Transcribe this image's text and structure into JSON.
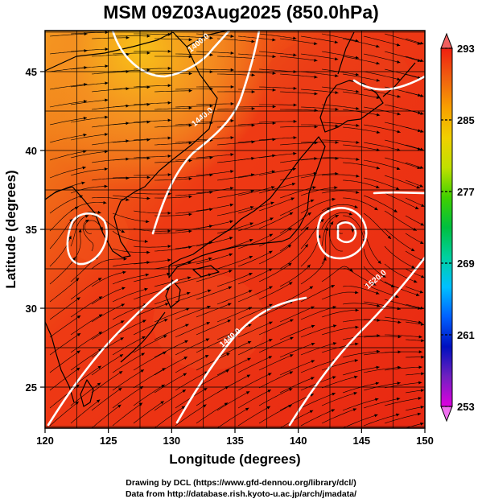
{
  "title": "MSM 09Z03Aug2025 (850.0hPa)",
  "x_axis": {
    "label": "Longitude (degrees)",
    "min": 120,
    "max": 150,
    "ticks": [
      120,
      125,
      130,
      135,
      140,
      145,
      150
    ]
  },
  "y_axis": {
    "label": "Latitude  (degrees)",
    "min": 22.4,
    "max": 47.6,
    "ticks": [
      25,
      30,
      35,
      40,
      45
    ]
  },
  "colorbar": {
    "min": 253,
    "max": 293,
    "ticks": [
      253,
      261,
      269,
      277,
      285,
      293
    ],
    "colors": [
      "#e000e0",
      "#7020c0",
      "#0010c0",
      "#0060ff",
      "#00c0ff",
      "#00d0a0",
      "#00c040",
      "#40d000",
      "#c0e000",
      "#f0d000",
      "#f8a000",
      "#f06010",
      "#f02010"
    ]
  },
  "map": {
    "grid_spacing_deg": 2.5,
    "contours": [
      {
        "label": "1400.0",
        "label_lon": 131.5,
        "label_lat": 46.2
      },
      {
        "label": "1440.0",
        "label_lon": 131.8,
        "label_lat": 41.5
      },
      {
        "label": "1440.0",
        "label_lon": 134.0,
        "label_lat": 27.5
      },
      {
        "label": "1520.0",
        "label_lon": 145.5,
        "label_lat": 31.2
      }
    ]
  },
  "credits": {
    "line1": "Drawing by DCL (https://www.gfd-dennou.org/library/dcl/)",
    "line2": "Data from http://database.rish.kyoto-u.ac.jp/arch/jmadata/"
  }
}
